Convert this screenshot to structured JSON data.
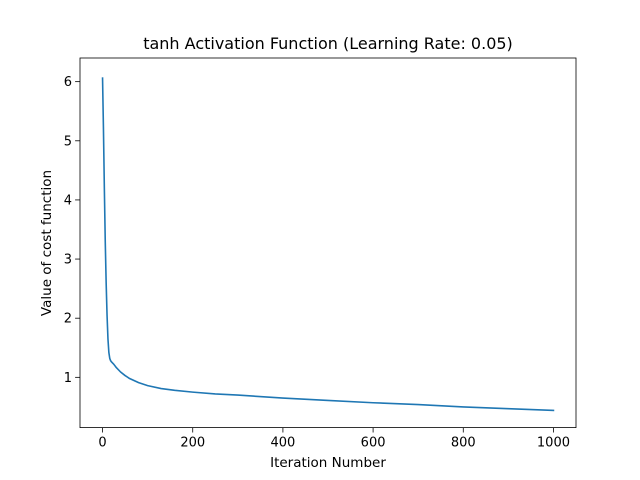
{
  "chart_data": {
    "type": "line",
    "title": "tanh Activation Function (Learning Rate: 0.05)",
    "xlabel": "Iteration Number",
    "ylabel": "Value of cost function",
    "xlim": [
      -50,
      1050
    ],
    "ylim": [
      0.15,
      6.4
    ],
    "xticks": [
      0,
      200,
      400,
      600,
      800,
      1000
    ],
    "xtick_labels": [
      "0",
      "200",
      "400",
      "600",
      "800",
      "1000"
    ],
    "yticks": [
      1,
      2,
      3,
      4,
      5,
      6
    ],
    "ytick_labels": [
      "1",
      "2",
      "3",
      "4",
      "5",
      "6"
    ],
    "grid": false,
    "legend": "none",
    "series": [
      {
        "color": "#1f77b4",
        "x": [
          0,
          2,
          4,
          6,
          8,
          10,
          12,
          14,
          16,
          18,
          20,
          25,
          30,
          40,
          50,
          60,
          80,
          100,
          130,
          160,
          200,
          250,
          300,
          400,
          500,
          600,
          700,
          800,
          900,
          1000
        ],
        "y": [
          6.06,
          5.2,
          4.2,
          3.3,
          2.6,
          2.05,
          1.65,
          1.42,
          1.32,
          1.28,
          1.26,
          1.22,
          1.17,
          1.09,
          1.03,
          0.98,
          0.91,
          0.86,
          0.81,
          0.78,
          0.75,
          0.72,
          0.7,
          0.65,
          0.61,
          0.57,
          0.54,
          0.5,
          0.47,
          0.44
        ]
      }
    ]
  }
}
